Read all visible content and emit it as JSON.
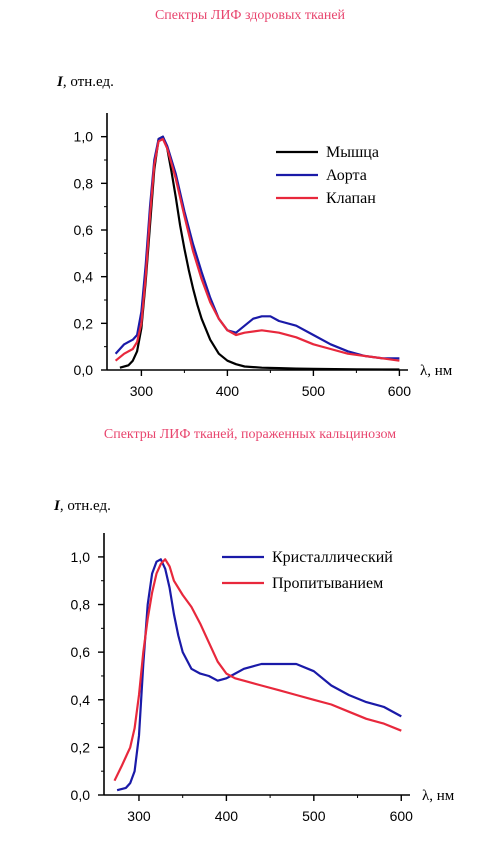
{
  "charts": [
    {
      "title": "Спектры ЛИФ здоровых тканей",
      "chart_data": {
        "type": "line",
        "xlabel": "λ, нм",
        "ylabel_var": "I",
        "ylabel_unit": ", отн.ед.",
        "xlim": [
          260,
          610
        ],
        "ylim": [
          0,
          1.05
        ],
        "xticks": [
          300,
          400,
          500,
          600
        ],
        "yticks": [
          "0,0",
          "0,2",
          "0,4",
          "0,6",
          "0,8",
          "1,0"
        ],
        "legend_position": "top-right",
        "series": [
          {
            "name": "Мышца",
            "color": "#000000",
            "x": [
              275,
              285,
              290,
              295,
              300,
              305,
              310,
              315,
              320,
              325,
              330,
              335,
              340,
              345,
              350,
              355,
              360,
              365,
              370,
              380,
              390,
              400,
              410,
              420,
              440,
              460,
              480,
              500,
              550,
              600
            ],
            "y": [
              0.01,
              0.02,
              0.04,
              0.08,
              0.18,
              0.38,
              0.62,
              0.86,
              0.99,
              1.0,
              0.95,
              0.85,
              0.74,
              0.62,
              0.52,
              0.43,
              0.35,
              0.28,
              0.22,
              0.13,
              0.07,
              0.04,
              0.025,
              0.015,
              0.01,
              0.008,
              0.006,
              0.005,
              0.003,
              0.002
            ]
          },
          {
            "name": "Аорта",
            "color": "#1a1aa8",
            "x": [
              270,
              280,
              290,
              295,
              300,
              305,
              310,
              315,
              320,
              325,
              330,
              340,
              350,
              360,
              370,
              380,
              390,
              400,
              410,
              420,
              430,
              440,
              450,
              460,
              480,
              500,
              520,
              540,
              560,
              580,
              600
            ],
            "y": [
              0.07,
              0.11,
              0.13,
              0.15,
              0.25,
              0.45,
              0.7,
              0.9,
              0.99,
              1.0,
              0.96,
              0.84,
              0.68,
              0.54,
              0.42,
              0.31,
              0.22,
              0.17,
              0.16,
              0.19,
              0.22,
              0.23,
              0.23,
              0.21,
              0.19,
              0.15,
              0.11,
              0.08,
              0.06,
              0.05,
              0.05
            ]
          },
          {
            "name": "Клапан",
            "color": "#e8283c",
            "x": [
              270,
              280,
              290,
              295,
              300,
              305,
              310,
              315,
              320,
              325,
              330,
              340,
              350,
              360,
              370,
              380,
              390,
              400,
              410,
              420,
              440,
              460,
              480,
              500,
              520,
              540,
              560,
              580,
              600
            ],
            "y": [
              0.04,
              0.07,
              0.09,
              0.12,
              0.2,
              0.4,
              0.66,
              0.88,
              0.98,
              0.99,
              0.95,
              0.82,
              0.66,
              0.51,
              0.39,
              0.29,
              0.22,
              0.17,
              0.15,
              0.16,
              0.17,
              0.16,
              0.14,
              0.11,
              0.09,
              0.07,
              0.06,
              0.05,
              0.04
            ]
          }
        ]
      }
    },
    {
      "title": "Спектры ЛИФ тканей, пораженных кальцинозом",
      "chart_data": {
        "type": "line",
        "xlabel": "λ, нм",
        "ylabel_var": "I",
        "ylabel_unit": ", отн.ед.",
        "xlim": [
          260,
          610
        ],
        "ylim": [
          0,
          1.05
        ],
        "xticks": [
          300,
          400,
          500,
          600
        ],
        "yticks": [
          "0,0",
          "0,2",
          "0,4",
          "0,6",
          "0,8",
          "1,0"
        ],
        "legend_position": "top-right",
        "series": [
          {
            "name": "Кристаллический",
            "color": "#1a1aa8",
            "x": [
              275,
              285,
              290,
              295,
              300,
              305,
              310,
              315,
              320,
              325,
              330,
              335,
              340,
              345,
              350,
              360,
              370,
              380,
              390,
              400,
              410,
              420,
              430,
              440,
              460,
              480,
              500,
              520,
              540,
              560,
              580,
              600
            ],
            "y": [
              0.02,
              0.03,
              0.05,
              0.1,
              0.25,
              0.55,
              0.8,
              0.93,
              0.98,
              0.99,
              0.95,
              0.87,
              0.76,
              0.67,
              0.6,
              0.53,
              0.51,
              0.5,
              0.48,
              0.49,
              0.51,
              0.53,
              0.54,
              0.55,
              0.55,
              0.55,
              0.52,
              0.46,
              0.42,
              0.39,
              0.37,
              0.33
            ]
          },
          {
            "name": "Пропитыванием",
            "color": "#e8283c",
            "x": [
              272,
              280,
              290,
              295,
              300,
              305,
              310,
              315,
              320,
              325,
              330,
              335,
              340,
              350,
              360,
              370,
              380,
              390,
              400,
              410,
              420,
              440,
              460,
              480,
              500,
              520,
              540,
              560,
              580,
              600
            ],
            "y": [
              0.06,
              0.12,
              0.2,
              0.28,
              0.42,
              0.6,
              0.74,
              0.85,
              0.93,
              0.97,
              0.99,
              0.96,
              0.9,
              0.84,
              0.79,
              0.72,
              0.64,
              0.56,
              0.51,
              0.49,
              0.48,
              0.46,
              0.44,
              0.42,
              0.4,
              0.38,
              0.35,
              0.32,
              0.3,
              0.27
            ]
          }
        ]
      }
    }
  ]
}
